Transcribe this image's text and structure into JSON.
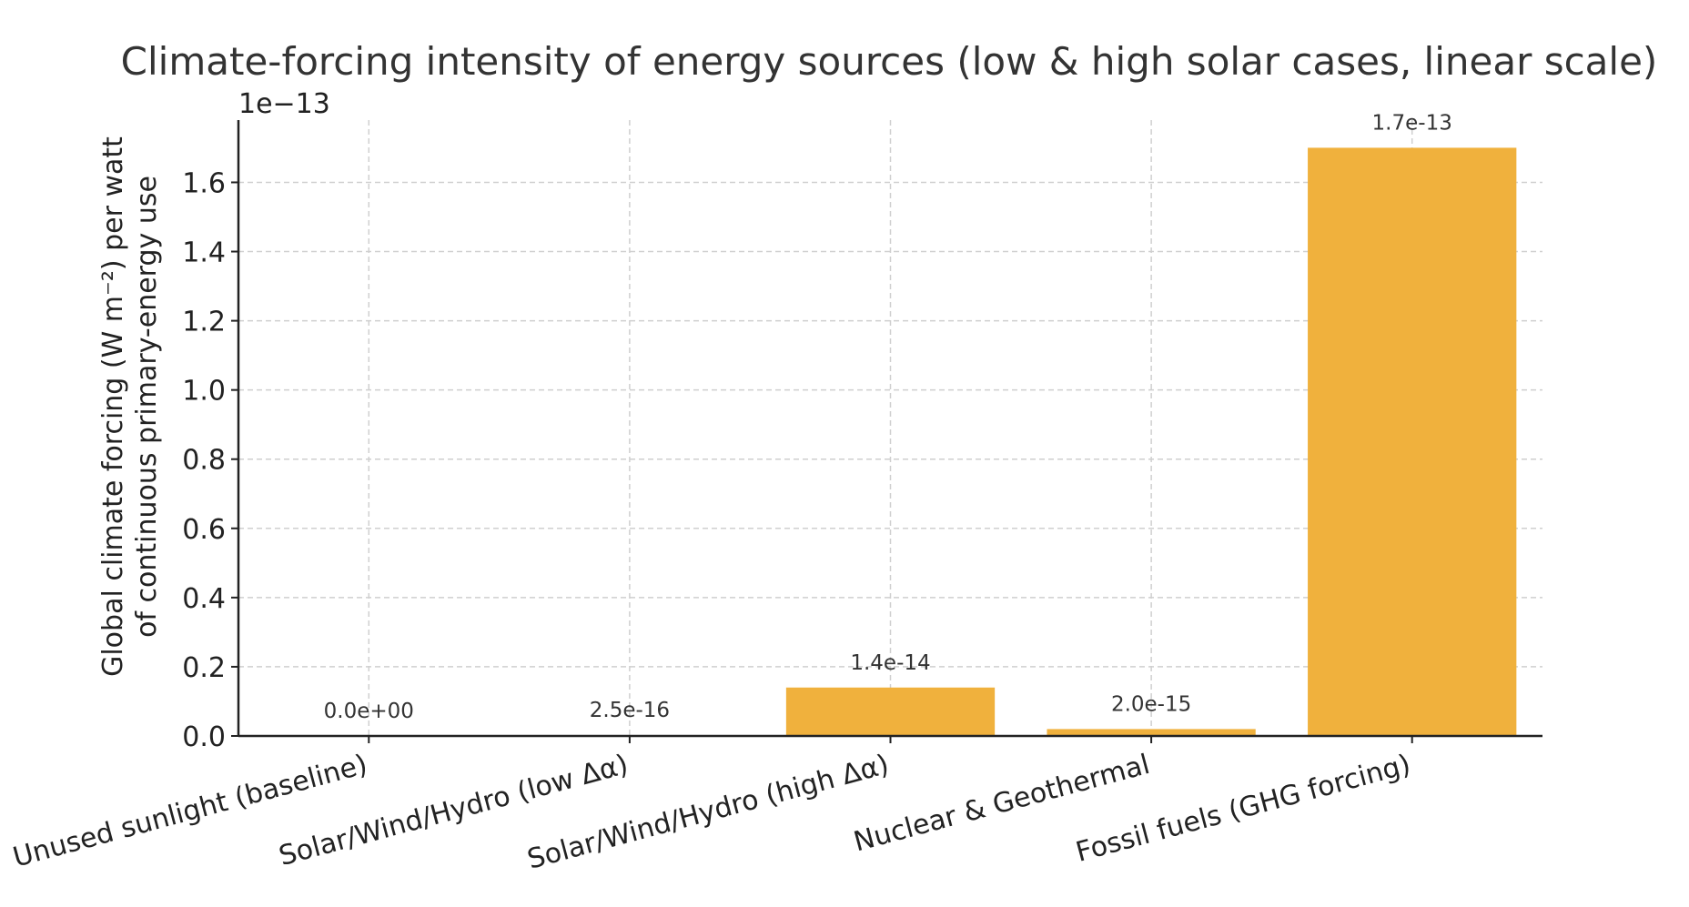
{
  "chart_data": {
    "type": "bar",
    "title": "Climate-forcing intensity of energy sources (low & high solar cases, linear scale)",
    "ylabel_lines": [
      "Global climate forcing (W m⁻²) per watt",
      "of continuous primary-energy use"
    ],
    "xlabel": "",
    "y_offset_label": "1e−13",
    "y_scale": 1e-13,
    "ylim": [
      0,
      1.78
    ],
    "yticks": [
      0.0,
      0.2,
      0.4,
      0.6,
      0.8,
      1.0,
      1.2,
      1.4,
      1.6
    ],
    "ytick_labels": [
      "0.0",
      "0.2",
      "0.4",
      "0.6",
      "0.8",
      "1.0",
      "1.2",
      "1.4",
      "1.6"
    ],
    "categories": [
      "Unused sunlight (baseline)",
      "Solar/Wind/Hydro (low Δα)",
      "Solar/Wind/Hydro (high Δα)",
      "Nuclear & Geothermal",
      "Fossil fuels (GHG forcing)"
    ],
    "values": [
      0.0,
      0.0025,
      0.14,
      0.02,
      1.7
    ],
    "data_labels": [
      "0.0e+00",
      "2.5e-16",
      "1.4e-14",
      "2.0e-15",
      "1.7e-13"
    ],
    "bar_color": "#F0B13D",
    "grid": true,
    "legend": "none"
  }
}
